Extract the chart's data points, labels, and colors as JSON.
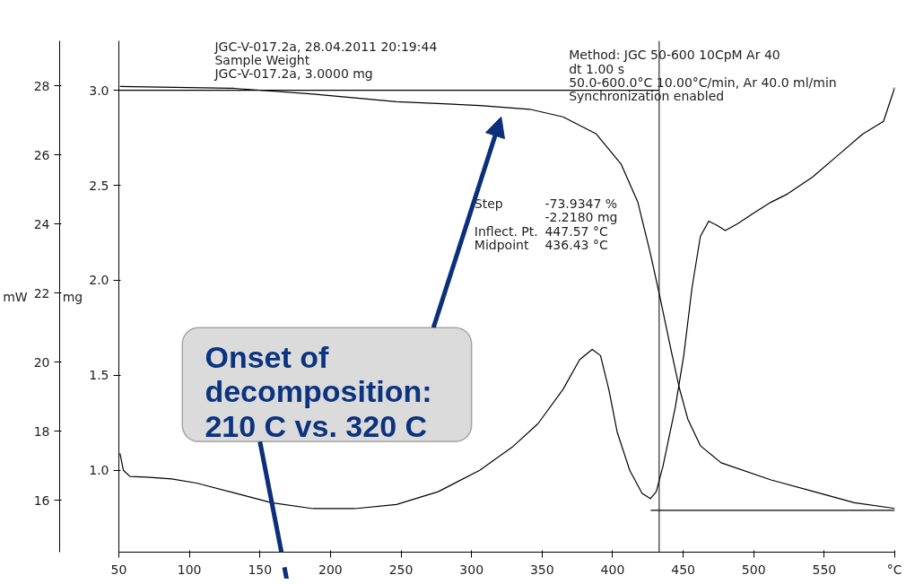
{
  "chart_data": {
    "type": "line",
    "ylabel": "mW",
    "y2label": "mg",
    "series": [
      {
        "color": "#000000",
        "axis": "y",
        "x": [
          50.8,
          53.2,
          57.9,
          69.7,
          87.5,
          105.1,
          128.7,
          158.2,
          187.7,
          217.2,
          246.8,
          276.3,
          305.8,
          329.4,
          347.1,
          364.8,
          376.6,
          385.5,
          391.4,
          397.3,
          403.2,
          412.1,
          420.9,
          426.8,
          430.9,
          435.7,
          444.5,
          450.4,
          456.3,
          462.2,
          468.1,
          474.0,
          479.9,
          488.7,
          500.5,
          512.3,
          524.1,
          541.8,
          559.5,
          577.2,
          592.0,
          600
        ],
        "values": [
          17.36,
          16.87,
          16.69,
          16.67,
          16.62,
          16.5,
          16.25,
          15.93,
          15.76,
          15.76,
          15.88,
          16.25,
          16.87,
          17.56,
          18.22,
          19.21,
          20.07,
          20.37,
          20.19,
          19.21,
          17.98,
          16.87,
          16.2,
          16.05,
          16.25,
          16.99,
          18.71,
          20.19,
          22.16,
          23.64,
          24.08,
          23.96,
          23.81,
          24.01,
          24.33,
          24.63,
          24.87,
          25.36,
          25.98,
          26.6,
          26.97,
          27.95
        ]
      },
      {
        "color": "#000000",
        "axis": "y2",
        "x": [
          50.8,
          131.7,
          187.7,
          246.8,
          305.8,
          341.2,
          364.8,
          388.4,
          406.1,
          417.9,
          426.8,
          433.3,
          441.5,
          447.4,
          453.3,
          462.2,
          476.9,
          512.3,
          541.8,
          571.3,
          600
        ],
        "values": [
          3.02,
          3.01,
          2.98,
          2.94,
          2.92,
          2.9,
          2.86,
          2.77,
          2.61,
          2.41,
          2.14,
          1.92,
          1.63,
          1.43,
          1.27,
          1.13,
          1.04,
          0.95,
          0.89,
          0.83,
          0.8
        ]
      },
      {
        "color": "#000000",
        "axis": "y2",
        "x": [
          50,
          433
        ],
        "values": [
          3.0,
          3.0
        ]
      },
      {
        "color": "#000000",
        "axis": "y2",
        "x": [
          427,
          600
        ],
        "values": [
          0.79,
          0.79
        ]
      }
    ],
    "xlim": [
      50,
      600
    ],
    "xticks": [
      50,
      100,
      150,
      200,
      250,
      300,
      350,
      400,
      450,
      500,
      550,
      {
        "value": 600,
        "label": "°C"
      }
    ],
    "ylim": [
      14.5,
      29.3
    ],
    "yticks": [
      16,
      18,
      20,
      22,
      24,
      26,
      28
    ],
    "y2lim": [
      0.57,
      3.26
    ],
    "y2ticks": [
      {
        "value": 1,
        "label": "1.0"
      },
      1.5,
      {
        "value": 2,
        "label": "2.0"
      },
      2.5,
      {
        "value": 3,
        "label": "3.0"
      }
    ],
    "ref_lines": [
      {
        "axis": "x",
        "value": 433,
        "color": "#000000"
      }
    ],
    "annotations": [
      "JGC-V-017.2a, 28.04.2011 20:19:44\nSample Weight\nJGC-V-017.2a, 3.0000 mg",
      "Method: JGC 50-600 10CpM Ar 40\ndt 1.00 s\n  50.0-600.0°C 10.00°C/min, Ar 40.0 ml/min\nSynchronization enabled",
      "Step\n\nInflect. Pt.\nMidpoint",
      "-73.9347 %\n-2.2180 mg\n447.57 °C\n436.43 °C",
      "Onset of\ndecomposition:\n210 C vs. 320 C"
    ],
    "grid": false,
    "line_style": "solid",
    "marker": "none"
  }
}
